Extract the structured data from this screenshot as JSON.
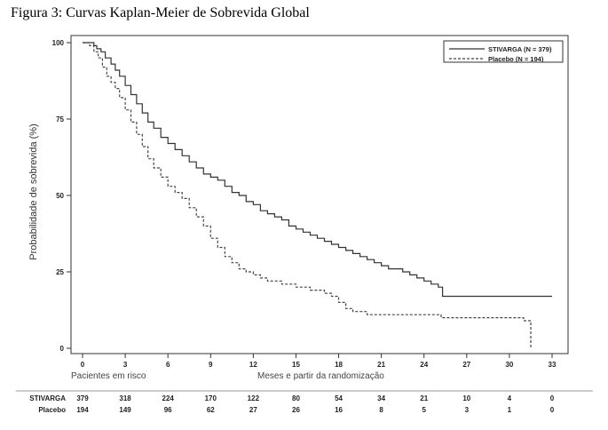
{
  "figure": {
    "title": "Figura 3: Curvas Kaplan-Meier de Sobrevida Global"
  },
  "chart_data": {
    "type": "line",
    "subtype": "kaplan-meier step",
    "ylabel": "Probabilidade de sobrevida (%)",
    "xlabel": "Meses e partir da randomização",
    "risk_table_label": "Pacientes em risco",
    "xlim": [
      0,
      33
    ],
    "ylim": [
      0,
      100
    ],
    "xticks": [
      0,
      3,
      6,
      9,
      12,
      15,
      18,
      21,
      24,
      27,
      30,
      33
    ],
    "yticks": [
      0,
      25,
      50,
      75,
      100
    ],
    "legend_position": "top-right",
    "series": [
      {
        "name": "STIVARGA (N = 379)",
        "style": "solid",
        "color": "#333333",
        "x": [
          0,
          0.8,
          1.0,
          1.3,
          1.6,
          2.0,
          2.3,
          2.6,
          3.0,
          3.4,
          3.8,
          4.2,
          4.6,
          5.0,
          5.5,
          6.0,
          6.5,
          7.0,
          7.5,
          8.0,
          8.5,
          9.0,
          9.5,
          10.0,
          10.5,
          11.0,
          11.5,
          12.0,
          12.5,
          13.0,
          13.5,
          14.0,
          14.5,
          15.0,
          15.5,
          16.0,
          16.5,
          17.0,
          17.5,
          18.0,
          18.5,
          19.0,
          19.5,
          20.0,
          20.5,
          21.0,
          21.5,
          22.0,
          22.5,
          23.0,
          23.5,
          24.0,
          24.5,
          25.0,
          25.3,
          26.0,
          27.0,
          28.0,
          29.0,
          30.0,
          31.0,
          32.0,
          33.0
        ],
        "y": [
          100,
          99,
          98,
          97,
          95,
          93,
          91,
          89,
          86,
          83,
          80,
          77,
          74,
          72,
          69,
          67,
          65,
          63,
          61,
          59,
          57,
          56,
          55,
          53,
          51,
          50,
          48,
          47,
          45,
          44,
          43,
          42,
          40,
          39,
          38,
          37,
          36,
          35,
          34,
          33,
          32,
          31,
          30,
          29,
          28,
          27,
          26,
          26,
          25,
          24,
          23,
          22,
          21,
          20,
          17,
          17,
          17,
          17,
          17,
          17,
          17,
          17,
          17
        ]
      },
      {
        "name": "Placebo (N = 194)",
        "style": "dashed",
        "color": "#444444",
        "x": [
          0,
          0.5,
          0.8,
          1.1,
          1.4,
          1.7,
          2.0,
          2.3,
          2.6,
          3.0,
          3.4,
          3.8,
          4.2,
          4.6,
          5.0,
          5.5,
          6.0,
          6.5,
          7.0,
          7.5,
          8.0,
          8.5,
          9.0,
          9.5,
          10.0,
          10.5,
          11.0,
          11.5,
          12.0,
          12.5,
          13.0,
          13.5,
          14.0,
          14.5,
          15.0,
          15.5,
          16.0,
          16.5,
          17.0,
          17.5,
          18.0,
          18.5,
          19.0,
          20.0,
          21.0,
          22.0,
          23.0,
          24.0,
          25.0,
          25.2,
          26.0,
          28.0,
          30.0,
          31.0,
          31.5,
          31.5
        ],
        "y": [
          100,
          99,
          97,
          95,
          92,
          89,
          87,
          85,
          82,
          78,
          74,
          70,
          66,
          62,
          59,
          56,
          53,
          51,
          49,
          46,
          43,
          40,
          36,
          33,
          30,
          28,
          26,
          25,
          24,
          23,
          22,
          22,
          21,
          21,
          20,
          20,
          19,
          19,
          18,
          17,
          15,
          13,
          12,
          11,
          11,
          11,
          11,
          11,
          11,
          10,
          10,
          10,
          10,
          9,
          9,
          0
        ]
      }
    ],
    "risk_table": {
      "times": [
        0,
        3,
        6,
        9,
        12,
        15,
        18,
        21,
        24,
        27,
        30,
        33
      ],
      "rows": [
        {
          "label": "STIVARGA",
          "values": [
            379,
            318,
            224,
            170,
            122,
            80,
            54,
            34,
            21,
            10,
            4,
            0
          ]
        },
        {
          "label": "Placebo",
          "values": [
            194,
            149,
            96,
            62,
            27,
            26,
            16,
            8,
            5,
            3,
            1,
            0
          ]
        }
      ]
    }
  }
}
